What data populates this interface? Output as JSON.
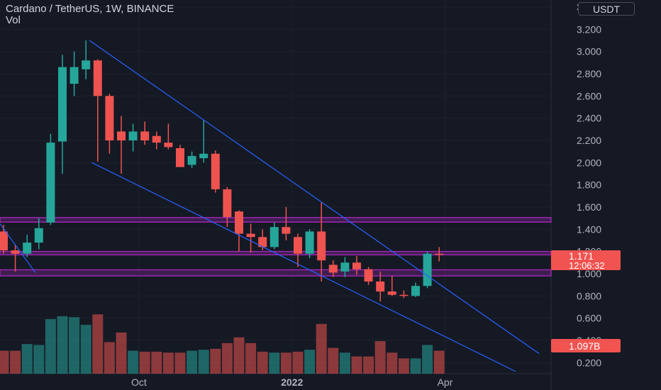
{
  "header": {
    "title": "Cardano / TetherUS, 1W, BINANCE",
    "volume_label": "Vol"
  },
  "currency_button": "USDT",
  "price_badge": {
    "price": "1.171",
    "countdown": "12:06:32",
    "color": "#f05350"
  },
  "volume_badge": {
    "value": "1.097B",
    "color": "#f05350"
  },
  "colors": {
    "up": "#26a69a",
    "down": "#ef5350",
    "channel": "#2962ff",
    "zone": "#9c27b0",
    "background": "#151924"
  },
  "chart_data": {
    "type": "candlestick",
    "title": "Cardano / TetherUS, 1W, BINANCE",
    "ylim": [
      0.1,
      3.4
    ],
    "y_ticks": [
      "0.200",
      "0.400",
      "0.600",
      "0.800",
      "1.000",
      "1.200",
      "1.400",
      "1.600",
      "1.800",
      "2.000",
      "2.200",
      "2.400",
      "2.600",
      "2.800",
      "3.000",
      "3.200",
      "3.400"
    ],
    "x_ticks": [
      {
        "label": "Oct",
        "index": 11.5
      },
      {
        "label": "2022",
        "index": 24.5
      },
      {
        "label": "Apr",
        "index": 37.5
      }
    ],
    "first_visible_index": -0.3,
    "candles": [
      {
        "o": 1.38,
        "h": 1.44,
        "l": 1.18,
        "c": 1.21
      },
      {
        "o": 1.21,
        "h": 1.26,
        "l": 1.02,
        "c": 1.18
      },
      {
        "o": 1.18,
        "h": 1.35,
        "l": 1.15,
        "c": 1.28
      },
      {
        "o": 1.28,
        "h": 1.5,
        "l": 1.22,
        "c": 1.41
      },
      {
        "o": 1.46,
        "h": 2.26,
        "l": 1.44,
        "c": 2.18
      },
      {
        "o": 2.19,
        "h": 2.97,
        "l": 1.9,
        "c": 2.86
      },
      {
        "o": 2.71,
        "h": 3.0,
        "l": 2.6,
        "c": 2.86
      },
      {
        "o": 2.84,
        "h": 3.1,
        "l": 2.75,
        "c": 2.92
      },
      {
        "o": 2.92,
        "h": 2.93,
        "l": 2.01,
        "c": 2.6
      },
      {
        "o": 2.6,
        "h": 2.62,
        "l": 2.08,
        "c": 2.2
      },
      {
        "o": 2.28,
        "h": 2.42,
        "l": 1.9,
        "c": 2.2
      },
      {
        "o": 2.2,
        "h": 2.35,
        "l": 2.1,
        "c": 2.28
      },
      {
        "o": 2.28,
        "h": 2.37,
        "l": 2.16,
        "c": 2.2
      },
      {
        "o": 2.24,
        "h": 2.28,
        "l": 2.12,
        "c": 2.18
      },
      {
        "o": 2.18,
        "h": 2.35,
        "l": 2.12,
        "c": 2.14
      },
      {
        "o": 2.13,
        "h": 2.16,
        "l": 1.96,
        "c": 1.96
      },
      {
        "o": 1.98,
        "h": 2.1,
        "l": 1.95,
        "c": 2.06
      },
      {
        "o": 2.04,
        "h": 2.38,
        "l": 2.0,
        "c": 2.08
      },
      {
        "o": 2.08,
        "h": 2.11,
        "l": 1.73,
        "c": 1.76
      },
      {
        "o": 1.76,
        "h": 1.78,
        "l": 1.42,
        "c": 1.51
      },
      {
        "o": 1.56,
        "h": 1.57,
        "l": 1.2,
        "c": 1.36
      },
      {
        "o": 1.36,
        "h": 1.45,
        "l": 1.19,
        "c": 1.33
      },
      {
        "o": 1.33,
        "h": 1.4,
        "l": 1.21,
        "c": 1.24
      },
      {
        "o": 1.24,
        "h": 1.46,
        "l": 1.22,
        "c": 1.42
      },
      {
        "o": 1.42,
        "h": 1.6,
        "l": 1.3,
        "c": 1.36
      },
      {
        "o": 1.33,
        "h": 1.36,
        "l": 1.06,
        "c": 1.18
      },
      {
        "o": 1.18,
        "h": 1.4,
        "l": 1.14,
        "c": 1.38
      },
      {
        "o": 1.38,
        "h": 1.64,
        "l": 0.93,
        "c": 1.12
      },
      {
        "o": 1.08,
        "h": 1.12,
        "l": 0.97,
        "c": 1.01
      },
      {
        "o": 1.02,
        "h": 1.15,
        "l": 0.97,
        "c": 1.1
      },
      {
        "o": 1.1,
        "h": 1.16,
        "l": 0.99,
        "c": 1.04
      },
      {
        "o": 1.04,
        "h": 1.06,
        "l": 0.9,
        "c": 0.93
      },
      {
        "o": 0.93,
        "h": 1.02,
        "l": 0.75,
        "c": 0.84
      },
      {
        "o": 0.84,
        "h": 0.98,
        "l": 0.8,
        "c": 0.81
      },
      {
        "o": 0.81,
        "h": 0.85,
        "l": 0.78,
        "c": 0.8
      },
      {
        "o": 0.8,
        "h": 0.92,
        "l": 0.79,
        "c": 0.89
      },
      {
        "o": 0.89,
        "h": 1.2,
        "l": 0.87,
        "c": 1.18
      },
      {
        "o": 1.18,
        "h": 1.24,
        "l": 1.11,
        "c": 1.171
      }
    ],
    "volume": [
      0.24,
      0.24,
      0.31,
      0.3,
      0.57,
      0.6,
      0.59,
      0.51,
      0.62,
      0.33,
      0.43,
      0.24,
      0.23,
      0.23,
      0.22,
      0.22,
      0.24,
      0.25,
      0.26,
      0.32,
      0.38,
      0.32,
      0.23,
      0.22,
      0.22,
      0.23,
      0.25,
      0.52,
      0.27,
      0.22,
      0.18,
      0.18,
      0.34,
      0.22,
      0.16,
      0.16,
      0.3,
      0.24
    ],
    "volume_ylim": [
      0,
      1
    ],
    "horizontal_zones": [
      {
        "low": 1.465,
        "high": 1.505
      },
      {
        "low": 1.17,
        "high": 1.2
      },
      {
        "low": 0.98,
        "high": 1.035
      }
    ],
    "trend_lines": [
      {
        "from": {
          "i": 7.3,
          "p": 3.1
        },
        "to": {
          "i": 45.5,
          "p": 0.28
        }
      },
      {
        "from": {
          "i": 7.5,
          "p": 2.0
        },
        "to": {
          "i": 43.5,
          "p": 0.12
        }
      },
      {
        "from": {
          "i": -0.3,
          "p": 1.45
        },
        "to": {
          "i": 2.7,
          "p": 1.01
        }
      }
    ]
  }
}
